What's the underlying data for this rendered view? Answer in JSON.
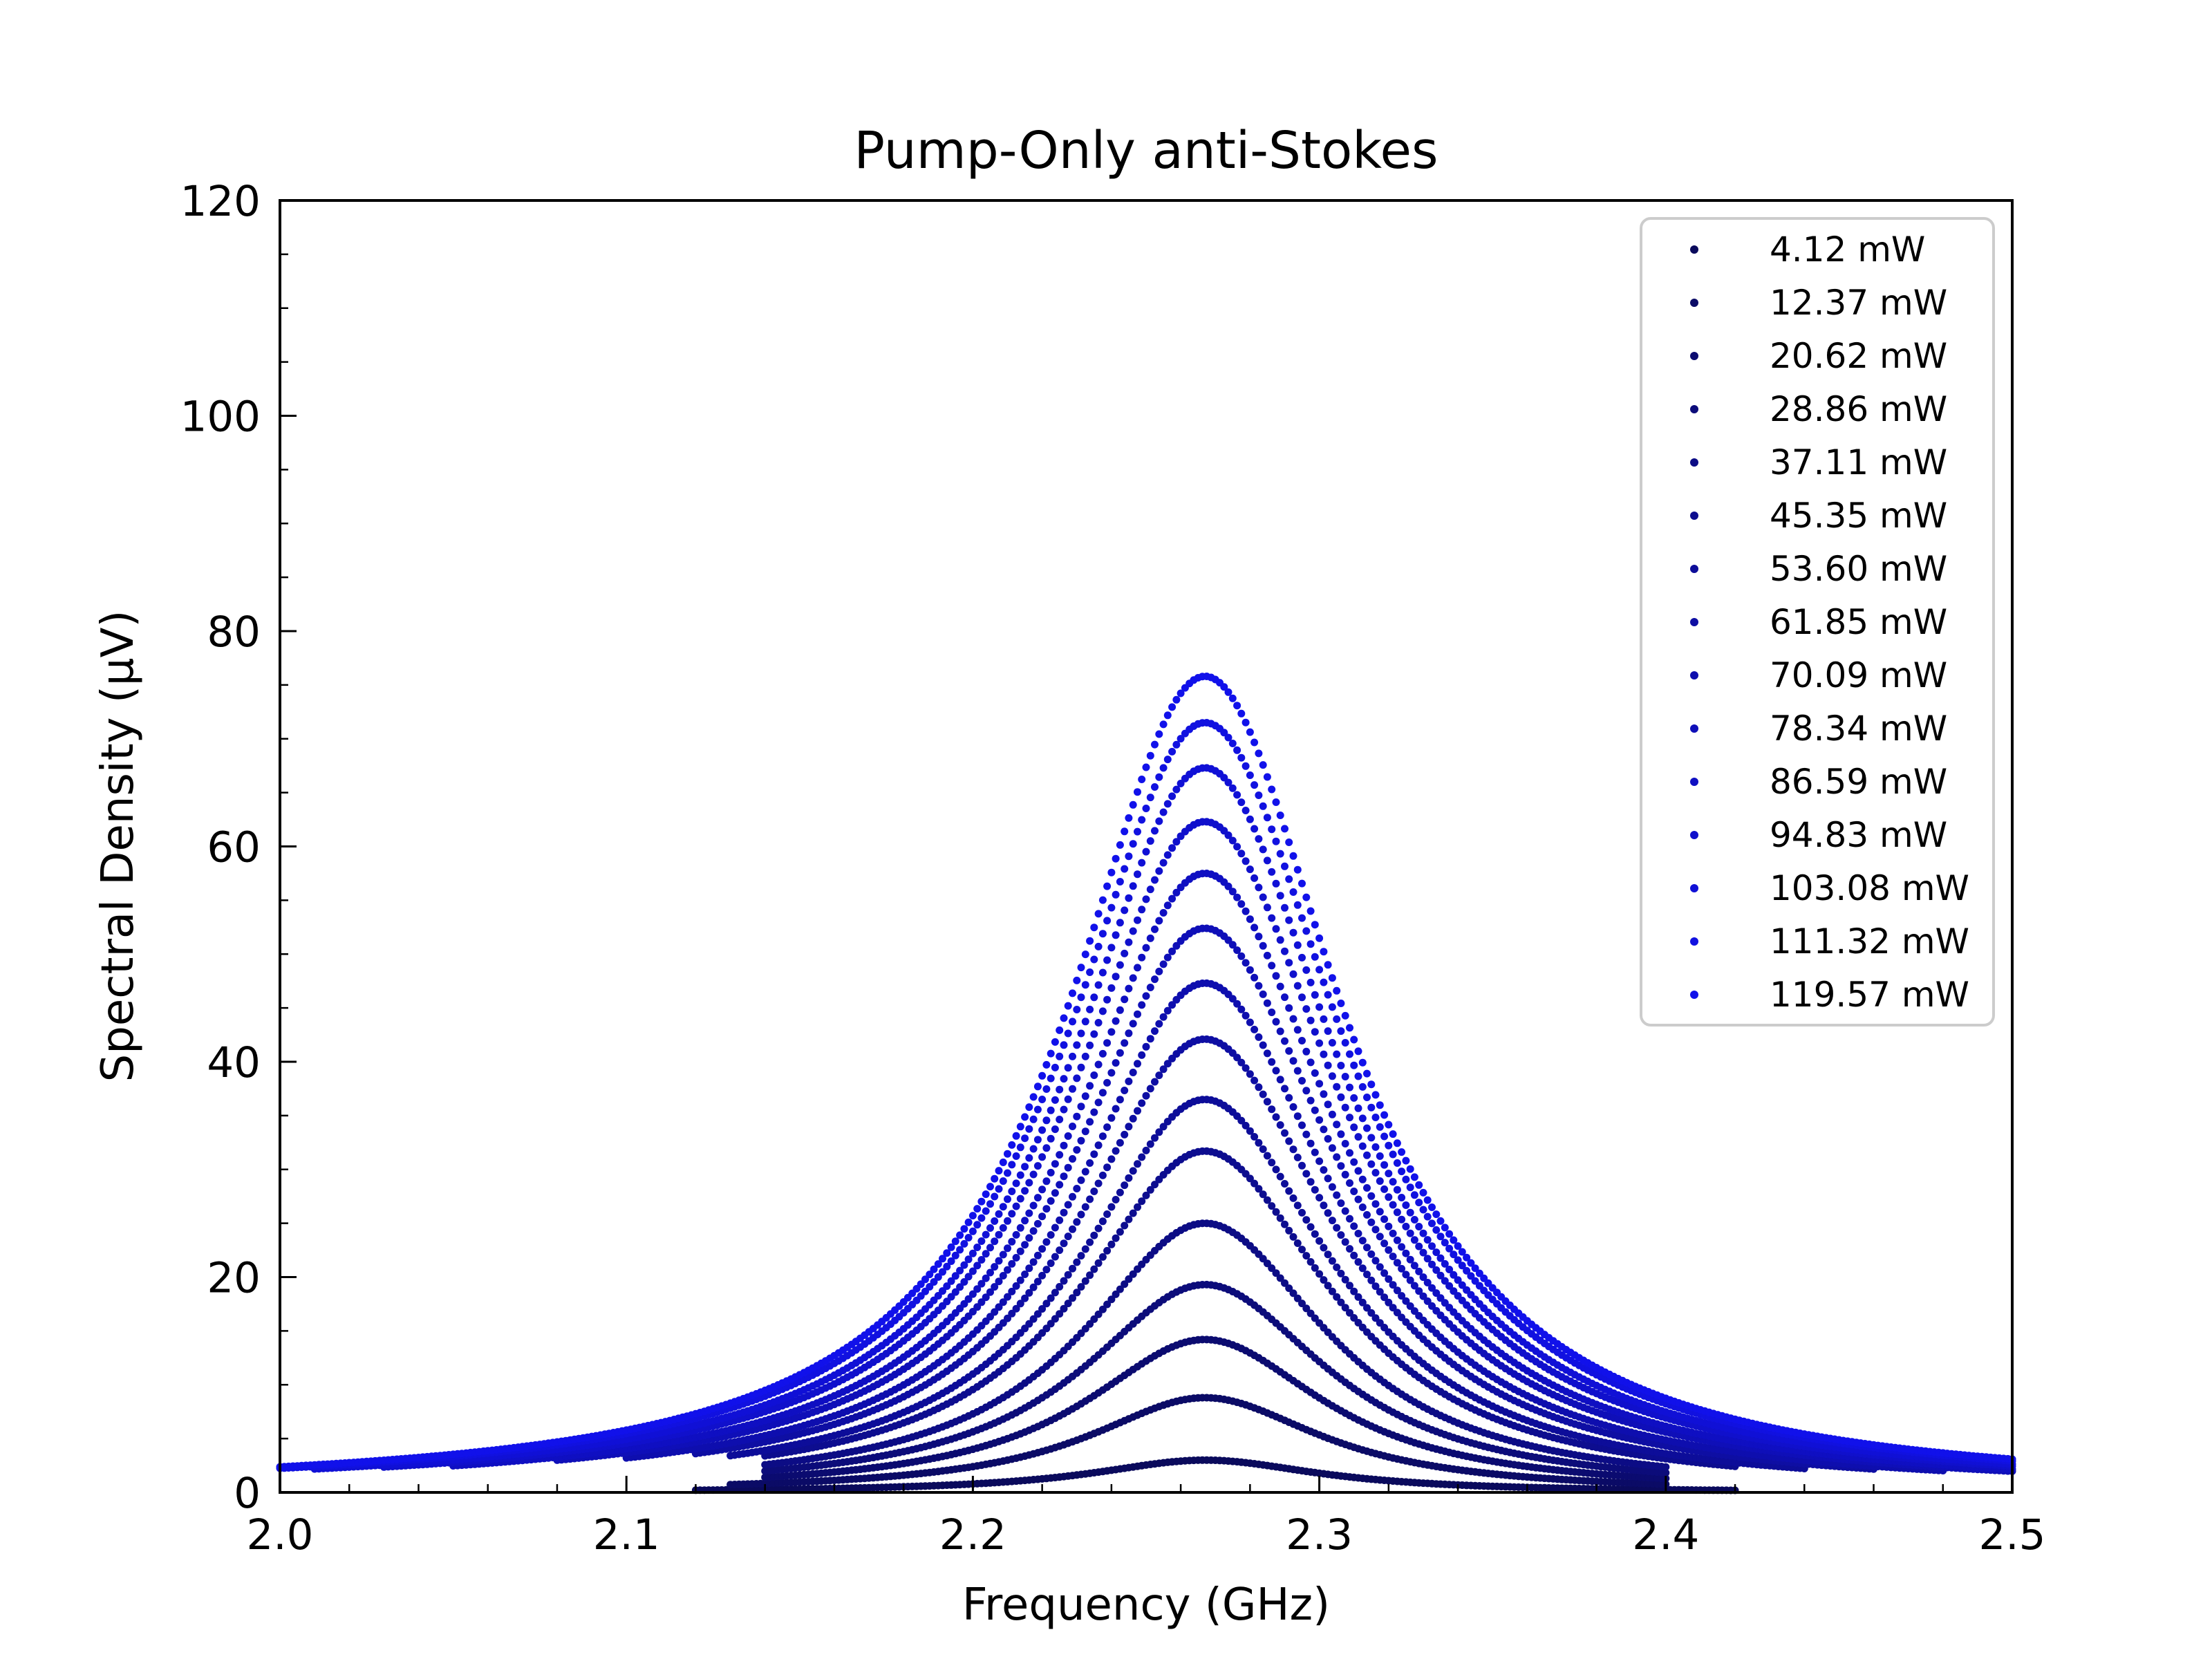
{
  "chart_data": {
    "type": "scatter",
    "title": "Pump-Only anti-Stokes",
    "xlabel": "Frequency (GHz)",
    "ylabel": "Spectral Density (μV)",
    "xlim": [
      2.0,
      2.5
    ],
    "ylim": [
      0,
      120
    ],
    "x_ticks": [
      "2.0",
      "2.1",
      "2.2",
      "2.3",
      "2.4",
      "2.5"
    ],
    "y_ticks": [
      "0",
      "20",
      "40",
      "60",
      "80",
      "100",
      "120"
    ],
    "grid": false,
    "legend_position": "top-right",
    "center_frequency": 2.267,
    "x_range_measured": [
      2.0,
      2.5
    ],
    "colors": [
      "#0a0a5c",
      "#0b0b66",
      "#0b0b70",
      "#0c0c7a",
      "#0c0c85",
      "#0d0d8f",
      "#0d0d99",
      "#0e0ea3",
      "#0e0eae",
      "#0f0fb8",
      "#0f0fc2",
      "#1010cc",
      "#1010d6",
      "#1111e0",
      "#1111ea"
    ],
    "series": [
      {
        "name": "4.12 mW",
        "peak": 3.0,
        "hwhm": 0.04,
        "x_start": 2.12,
        "x_end": 2.42
      },
      {
        "name": "12.37 mW",
        "peak": 8.8,
        "hwhm": 0.041,
        "x_start": 2.13,
        "x_end": 2.4
      },
      {
        "name": "20.62 mW",
        "peak": 14.2,
        "hwhm": 0.042,
        "x_start": 2.14,
        "x_end": 2.4
      },
      {
        "name": "28.86 mW",
        "peak": 19.3,
        "hwhm": 0.043,
        "x_start": 2.14,
        "x_end": 2.4
      },
      {
        "name": "37.11 mW",
        "peak": 25.0,
        "hwhm": 0.043,
        "x_start": 2.14,
        "x_end": 2.4
      },
      {
        "name": "45.35 mW",
        "peak": 31.7,
        "hwhm": 0.044,
        "x_start": 2.14,
        "x_end": 2.42
      },
      {
        "name": "53.60 mW",
        "peak": 36.5,
        "hwhm": 0.044,
        "x_start": 2.13,
        "x_end": 2.44
      },
      {
        "name": "61.85 mW",
        "peak": 42.1,
        "hwhm": 0.045,
        "x_start": 2.12,
        "x_end": 2.46
      },
      {
        "name": "70.09 mW",
        "peak": 47.3,
        "hwhm": 0.045,
        "x_start": 2.1,
        "x_end": 2.48
      },
      {
        "name": "78.34 mW",
        "peak": 52.4,
        "hwhm": 0.046,
        "x_start": 2.08,
        "x_end": 2.5
      },
      {
        "name": "86.59 mW",
        "peak": 57.5,
        "hwhm": 0.046,
        "x_start": 2.05,
        "x_end": 2.5
      },
      {
        "name": "94.83 mW",
        "peak": 62.3,
        "hwhm": 0.047,
        "x_start": 2.03,
        "x_end": 2.5
      },
      {
        "name": "103.08 mW",
        "peak": 67.3,
        "hwhm": 0.047,
        "x_start": 2.01,
        "x_end": 2.5
      },
      {
        "name": "111.32 mW",
        "peak": 71.5,
        "hwhm": 0.048,
        "x_start": 2.0,
        "x_end": 2.5
      },
      {
        "name": "119.57 mW",
        "peak": 75.8,
        "hwhm": 0.048,
        "x_start": 2.0,
        "x_end": 2.5
      }
    ]
  }
}
